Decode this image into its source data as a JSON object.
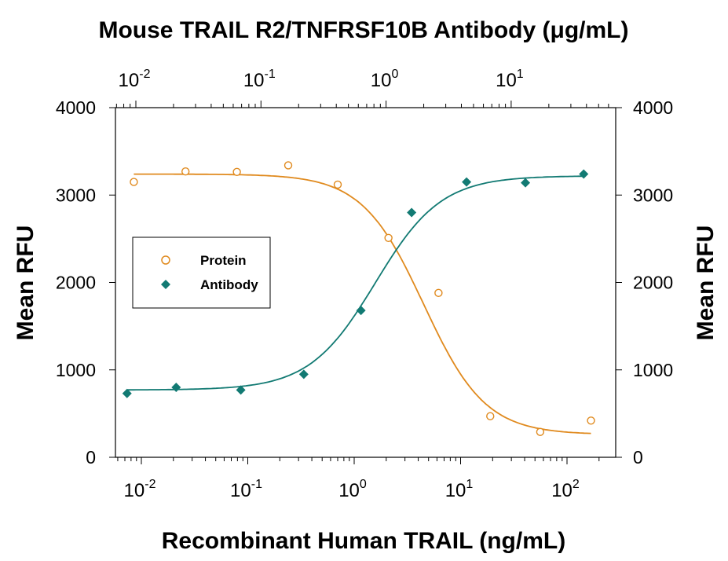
{
  "chart_data": {
    "type": "scatter",
    "title": "Mouse TRAIL R2/TNFRSF10B Antibody (μg/mL)",
    "xlabel": "Recombinant Human TRAIL (ng/mL)",
    "ylabel_left": "Mean RFU",
    "ylabel_right": "Mean RFU",
    "x_scale": "log",
    "xlim": [
      0.006,
      250
    ],
    "ylim": [
      0,
      4000
    ],
    "x_tick_values": [
      0.01,
      0.1,
      1,
      10,
      100
    ],
    "x_tick_labels": [
      {
        "base": "10",
        "exp": "-2"
      },
      {
        "base": "10",
        "exp": "-1"
      },
      {
        "base": "10",
        "exp": "0"
      },
      {
        "base": "10",
        "exp": "1"
      },
      {
        "base": "10",
        "exp": "2"
      }
    ],
    "y_ticks": [
      0,
      1000,
      2000,
      3000,
      4000
    ],
    "y_tick_labels": [
      "0",
      "1000",
      "2000",
      "3000",
      "4000"
    ],
    "top_axis": {
      "scale": "log",
      "tick_values": [
        0.01,
        0.1,
        1,
        10
      ],
      "tick_labels": [
        {
          "base": "10",
          "exp": "-2"
        },
        {
          "base": "10",
          "exp": "-1"
        },
        {
          "base": "10",
          "exp": "0"
        },
        {
          "base": "10",
          "exp": "1"
        }
      ]
    },
    "legend_position": "left-middle",
    "series": [
      {
        "name": "Protein",
        "axis": "bottom",
        "marker": "open-circle",
        "color": "#E08A1E",
        "points": [
          {
            "x": 0.0085,
            "y": 3150
          },
          {
            "x": 0.026,
            "y": 3270
          },
          {
            "x": 0.079,
            "y": 3265
          },
          {
            "x": 0.24,
            "y": 3340
          },
          {
            "x": 0.7,
            "y": 3120
          },
          {
            "x": 2.1,
            "y": 2510
          },
          {
            "x": 6.2,
            "y": 1880
          },
          {
            "x": 19,
            "y": 470
          },
          {
            "x": 56,
            "y": 290
          },
          {
            "x": 168,
            "y": 420
          }
        ],
        "fit": {
          "top": 3240,
          "bottom": 260,
          "ec50": 4.5,
          "hill": 1.5,
          "x_range": [
            0.0085,
            168
          ]
        }
      },
      {
        "name": "Antibody",
        "axis": "top",
        "marker": "filled-diamond",
        "color": "#127A73",
        "points": [
          {
            "x": 0.0085,
            "y": 730
          },
          {
            "x": 0.021,
            "y": 800
          },
          {
            "x": 0.069,
            "y": 770
          },
          {
            "x": 0.22,
            "y": 950
          },
          {
            "x": 0.63,
            "y": 1680
          },
          {
            "x": 1.6,
            "y": 2800
          },
          {
            "x": 4.4,
            "y": 3150
          },
          {
            "x": 13,
            "y": 3140
          },
          {
            "x": 38,
            "y": 3240
          }
        ],
        "fit": {
          "bottom": 770,
          "top": 3220,
          "ec50": 0.82,
          "hill": 1.65,
          "x_range": [
            0.0085,
            38
          ]
        }
      }
    ]
  }
}
